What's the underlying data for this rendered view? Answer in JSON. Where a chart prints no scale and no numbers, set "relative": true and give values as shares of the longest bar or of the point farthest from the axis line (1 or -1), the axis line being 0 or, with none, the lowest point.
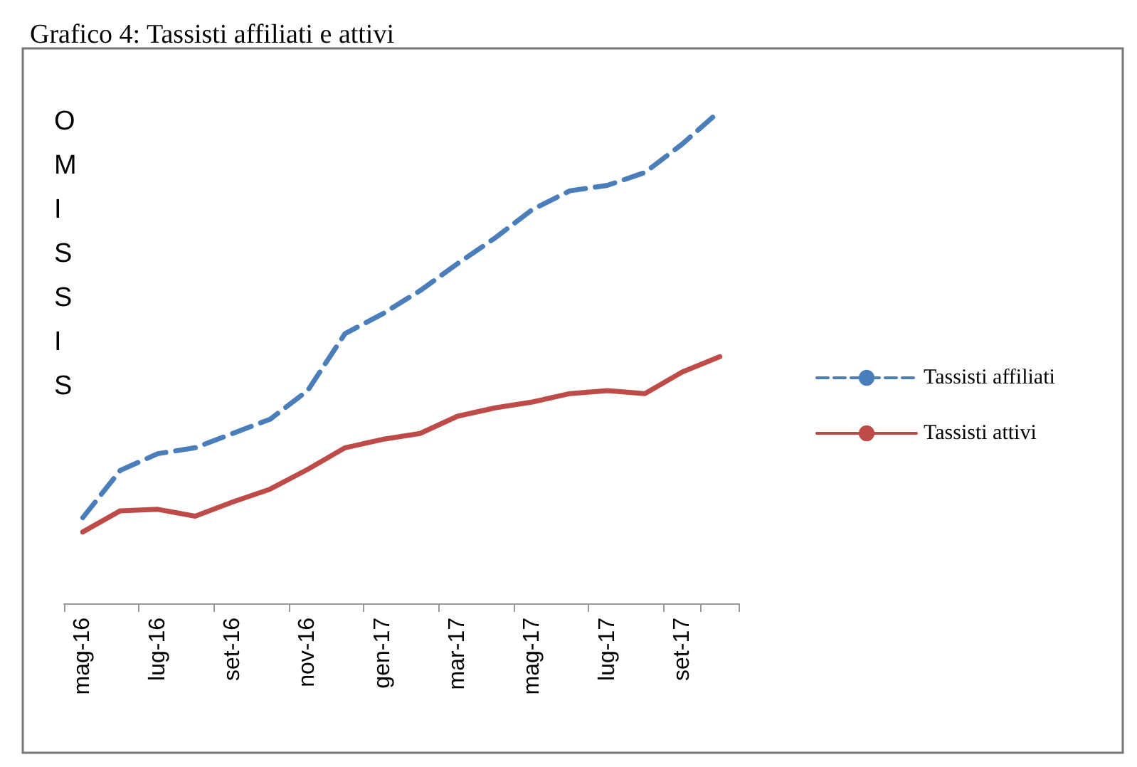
{
  "chart_data": {
    "type": "line",
    "title": "Grafico 4: Tassisti affiliati e attivi",
    "ylabel": "OMISSIS",
    "relative": true,
    "legend": "right",
    "marker": "none",
    "categories": [
      "mag-16",
      null,
      "lug-16",
      null,
      "set-16",
      null,
      "nov-16",
      null,
      "gen-17",
      null,
      "mar-17",
      null,
      "mag-17",
      null,
      "lug-17",
      null,
      "set-17",
      null
    ],
    "series": [
      {
        "name": "Tassisti affiliati",
        "color": "#4a7ebb",
        "line_style": "dashed",
        "values": [
          0.174,
          0.27,
          0.304,
          0.316,
          0.345,
          0.374,
          0.432,
          0.548,
          0.588,
          0.635,
          0.69,
          0.742,
          0.8,
          0.838,
          0.849,
          0.875,
          0.933,
          1
        ]
      },
      {
        "name": "Tassisti attivi",
        "color": "#be4b48",
        "line_style": "solid",
        "values": [
          0.145,
          0.188,
          0.191,
          0.177,
          0.206,
          0.232,
          0.272,
          0.316,
          0.333,
          0.345,
          0.38,
          0.397,
          0.409,
          0.426,
          0.432,
          0.426,
          0.47,
          0.501
        ]
      }
    ]
  }
}
